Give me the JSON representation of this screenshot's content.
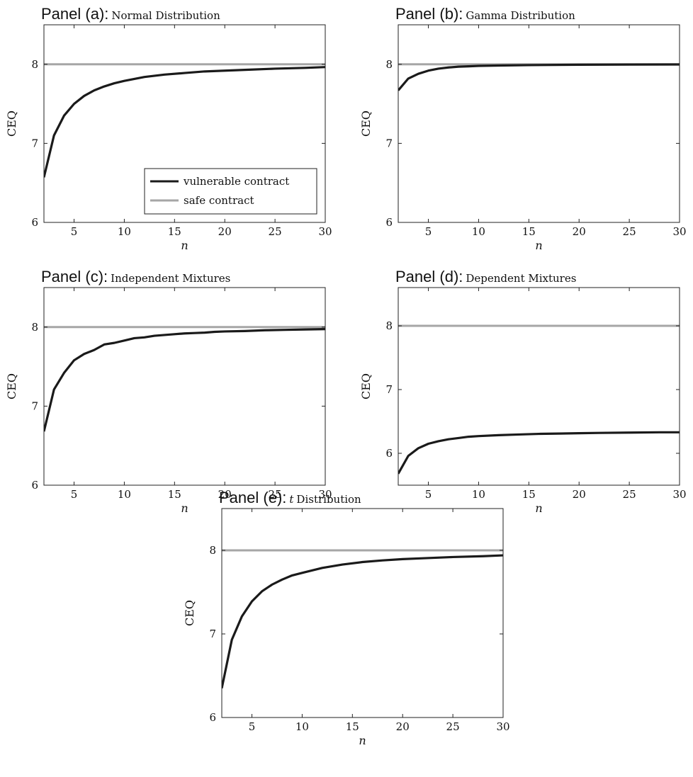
{
  "chart_data": [
    {
      "type": "line",
      "panel_label": "Panel (a):",
      "title": "Normal Distribution",
      "xlabel": "n",
      "ylabel": "CEQ",
      "xlim": [
        2,
        30
      ],
      "ylim": [
        6,
        8.5
      ],
      "xticks": [
        5,
        10,
        15,
        20,
        25,
        30
      ],
      "yticks": [
        6,
        7,
        8
      ],
      "grid": false,
      "legend": {
        "position": "bottom-right",
        "entries": [
          "vulnerable contract",
          "safe contract"
        ]
      },
      "series": [
        {
          "name": "vulnerable contract",
          "color": "#1a1a1a",
          "x": [
            2,
            3,
            4,
            5,
            6,
            7,
            8,
            9,
            10,
            12,
            14,
            16,
            18,
            20,
            22,
            25,
            28,
            30
          ],
          "y": [
            6.57,
            7.1,
            7.35,
            7.5,
            7.6,
            7.67,
            7.72,
            7.76,
            7.79,
            7.84,
            7.87,
            7.89,
            7.91,
            7.92,
            7.93,
            7.945,
            7.955,
            7.965
          ]
        },
        {
          "name": "safe contract",
          "color": "#a6a6a6",
          "x": [
            2,
            30
          ],
          "y": [
            8,
            8
          ]
        }
      ]
    },
    {
      "type": "line",
      "panel_label": "Panel (b):",
      "title": "Gamma Distribution",
      "xlabel": "n",
      "ylabel": "CEQ",
      "xlim": [
        2,
        30
      ],
      "ylim": [
        6,
        8.5
      ],
      "xticks": [
        5,
        10,
        15,
        20,
        25,
        30
      ],
      "yticks": [
        6,
        7,
        8
      ],
      "grid": false,
      "series": [
        {
          "name": "vulnerable contract",
          "color": "#1a1a1a",
          "x": [
            2,
            3,
            4,
            5,
            6,
            7,
            8,
            9,
            10,
            12,
            15,
            20,
            25,
            30
          ],
          "y": [
            7.67,
            7.82,
            7.88,
            7.92,
            7.945,
            7.96,
            7.97,
            7.975,
            7.98,
            7.985,
            7.99,
            7.995,
            7.997,
            7.998
          ]
        },
        {
          "name": "safe contract",
          "color": "#a6a6a6",
          "x": [
            2,
            30
          ],
          "y": [
            8,
            8
          ]
        }
      ]
    },
    {
      "type": "line",
      "panel_label": "Panel (c):",
      "title": "Independent Mixtures",
      "xlabel": "n",
      "ylabel": "CEQ",
      "xlim": [
        2,
        30
      ],
      "ylim": [
        6,
        8.5
      ],
      "xticks": [
        5,
        10,
        15,
        20,
        25,
        30
      ],
      "yticks": [
        6,
        7,
        8
      ],
      "grid": false,
      "series": [
        {
          "name": "vulnerable contract",
          "color": "#1a1a1a",
          "x": [
            2,
            3,
            4,
            5,
            6,
            7,
            8,
            9,
            10,
            11,
            12,
            13,
            14,
            15,
            16,
            17,
            18,
            19,
            20,
            22,
            24,
            26,
            28,
            30
          ],
          "y": [
            6.68,
            7.21,
            7.42,
            7.58,
            7.66,
            7.71,
            7.78,
            7.8,
            7.83,
            7.86,
            7.87,
            7.89,
            7.9,
            7.91,
            7.92,
            7.925,
            7.93,
            7.94,
            7.945,
            7.95,
            7.96,
            7.965,
            7.97,
            7.975
          ]
        },
        {
          "name": "safe contract",
          "color": "#a6a6a6",
          "x": [
            2,
            30
          ],
          "y": [
            8,
            8
          ]
        }
      ]
    },
    {
      "type": "line",
      "panel_label": "Panel (d):",
      "title": "Dependent Mixtures",
      "xlabel": "n",
      "ylabel": "CEQ",
      "xlim": [
        2,
        30
      ],
      "ylim": [
        5.5,
        8.6
      ],
      "xticks": [
        5,
        10,
        15,
        20,
        25,
        30
      ],
      "yticks": [
        6,
        7,
        8
      ],
      "grid": false,
      "series": [
        {
          "name": "vulnerable contract",
          "color": "#1a1a1a",
          "x": [
            2,
            3,
            4,
            5,
            6,
            7,
            8,
            9,
            10,
            12,
            14,
            16,
            18,
            20,
            22,
            25,
            28,
            30
          ],
          "y": [
            5.68,
            5.96,
            6.08,
            6.15,
            6.19,
            6.22,
            6.24,
            6.26,
            6.27,
            6.285,
            6.295,
            6.305,
            6.31,
            6.315,
            6.32,
            6.325,
            6.33,
            6.33
          ]
        },
        {
          "name": "safe contract",
          "color": "#a6a6a6",
          "x": [
            2,
            30
          ],
          "y": [
            8,
            8
          ]
        }
      ]
    },
    {
      "type": "line",
      "panel_label": "Panel (e):",
      "title_var": "t",
      "title": "Distribution",
      "xlabel": "n",
      "ylabel": "CEQ",
      "xlim": [
        2,
        30
      ],
      "ylim": [
        6,
        8.5
      ],
      "xticks": [
        5,
        10,
        15,
        20,
        25,
        30
      ],
      "yticks": [
        6,
        7,
        8
      ],
      "grid": false,
      "series": [
        {
          "name": "vulnerable contract",
          "color": "#1a1a1a",
          "x": [
            2,
            3,
            4,
            5,
            6,
            7,
            8,
            9,
            10,
            12,
            14,
            16,
            18,
            20,
            22,
            25,
            28,
            30
          ],
          "y": [
            6.35,
            6.93,
            7.21,
            7.39,
            7.51,
            7.59,
            7.65,
            7.7,
            7.73,
            7.79,
            7.83,
            7.86,
            7.88,
            7.895,
            7.905,
            7.92,
            7.93,
            7.94
          ]
        },
        {
          "name": "safe contract",
          "color": "#a6a6a6",
          "x": [
            2,
            30
          ],
          "y": [
            8,
            8
          ]
        }
      ]
    }
  ]
}
